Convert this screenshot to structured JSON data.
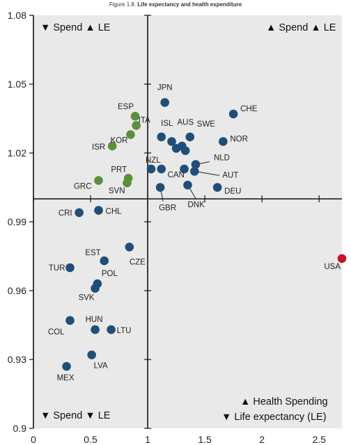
{
  "figure": {
    "number": "Figure 1.8.",
    "title": "Life expectancy and health expenditure"
  },
  "quadrants": {
    "top_left": "▼ Spend ▲ LE",
    "top_right": "▲ Spend ▲ LE",
    "bottom_left": "▼ Spend ▼ LE",
    "bottom_right_line1": "▲ Health Spending",
    "bottom_right_line2": "▼ Life expectancy (LE)"
  },
  "colors": {
    "blue": "#1f4e79",
    "green": "#5a8f3c",
    "red": "#c8102e",
    "plot_bg": "#e9e9e9",
    "axis": "#111111"
  },
  "chart_data": {
    "type": "scatter",
    "xlim": [
      0,
      2.7
    ],
    "ylim": [
      0.9,
      1.08
    ],
    "x_ticks": [
      0,
      0.5,
      1,
      1.5,
      2,
      2.5
    ],
    "x_tick_labels": [
      "0",
      "0.5",
      "1",
      "1.5",
      "2",
      "2.5"
    ],
    "y_ticks": [
      0.9,
      0.93,
      0.96,
      0.99,
      1.02,
      1.05,
      1.08
    ],
    "y_tick_labels": [
      "0.9",
      "0.93",
      "0.96",
      "0.99",
      "1.02",
      "1.05",
      "1.08"
    ],
    "cross_x": 1,
    "cross_y": 1.0,
    "grid": false,
    "points": [
      {
        "label": "JPN",
        "x": 1.15,
        "y": 1.042,
        "color": "blue"
      },
      {
        "label": "CHE",
        "x": 1.75,
        "y": 1.037,
        "color": "blue"
      },
      {
        "label": "ESP",
        "x": 0.89,
        "y": 1.036,
        "color": "green"
      },
      {
        "label": "ITA",
        "x": 0.9,
        "y": 1.032,
        "color": "green"
      },
      {
        "label": "KOR",
        "x": 0.85,
        "y": 1.028,
        "color": "green"
      },
      {
        "label": "ISR",
        "x": 0.69,
        "y": 1.023,
        "color": "green"
      },
      {
        "label": "ISL",
        "x": 1.12,
        "y": 1.027,
        "color": "blue"
      },
      {
        "label": "AUS",
        "x": 1.21,
        "y": 1.025,
        "color": "blue"
      },
      {
        "label": "SWE",
        "x": 1.37,
        "y": 1.027,
        "color": "blue"
      },
      {
        "label": "NOR",
        "x": 1.66,
        "y": 1.025,
        "color": "blue"
      },
      {
        "label": "",
        "x": 1.25,
        "y": 1.022,
        "color": "blue"
      },
      {
        "label": "",
        "x": 1.3,
        "y": 1.023,
        "color": "blue"
      },
      {
        "label": "",
        "x": 1.33,
        "y": 1.021,
        "color": "blue"
      },
      {
        "label": "NZL",
        "x": 1.03,
        "y": 1.013,
        "color": "blue"
      },
      {
        "label": "",
        "x": 1.12,
        "y": 1.013,
        "color": "blue"
      },
      {
        "label": "NLD",
        "x": 1.42,
        "y": 1.015,
        "color": "blue"
      },
      {
        "label": "CAN",
        "x": 1.32,
        "y": 1.013,
        "color": "blue"
      },
      {
        "label": "AUT",
        "x": 1.41,
        "y": 1.012,
        "color": "blue"
      },
      {
        "label": "PRT",
        "x": 0.83,
        "y": 1.009,
        "color": "green"
      },
      {
        "label": "SVN",
        "x": 0.82,
        "y": 1.007,
        "color": "green"
      },
      {
        "label": "GRC",
        "x": 0.57,
        "y": 1.008,
        "color": "green"
      },
      {
        "label": "GBR",
        "x": 1.11,
        "y": 1.005,
        "color": "blue"
      },
      {
        "label": "DNK",
        "x": 1.35,
        "y": 1.006,
        "color": "blue"
      },
      {
        "label": "DEU",
        "x": 1.61,
        "y": 1.005,
        "color": "blue"
      },
      {
        "label": "CRI",
        "x": 0.4,
        "y": 0.994,
        "color": "blue"
      },
      {
        "label": "CHL",
        "x": 0.57,
        "y": 0.995,
        "color": "blue"
      },
      {
        "label": "CZE",
        "x": 0.84,
        "y": 0.979,
        "color": "blue"
      },
      {
        "label": "EST",
        "x": 0.62,
        "y": 0.973,
        "color": "blue"
      },
      {
        "label": "TUR",
        "x": 0.32,
        "y": 0.97,
        "color": "blue"
      },
      {
        "label": "POL",
        "x": 0.56,
        "y": 0.963,
        "color": "blue"
      },
      {
        "label": "SVK",
        "x": 0.54,
        "y": 0.961,
        "color": "blue"
      },
      {
        "label": "COL",
        "x": 0.32,
        "y": 0.947,
        "color": "blue"
      },
      {
        "label": "HUN",
        "x": 0.54,
        "y": 0.943,
        "color": "blue"
      },
      {
        "label": "LTU",
        "x": 0.68,
        "y": 0.943,
        "color": "blue"
      },
      {
        "label": "LVA",
        "x": 0.51,
        "y": 0.932,
        "color": "blue"
      },
      {
        "label": "MEX",
        "x": 0.29,
        "y": 0.927,
        "color": "blue"
      },
      {
        "label": "USA",
        "x": 2.7,
        "y": 0.974,
        "color": "red"
      }
    ]
  }
}
